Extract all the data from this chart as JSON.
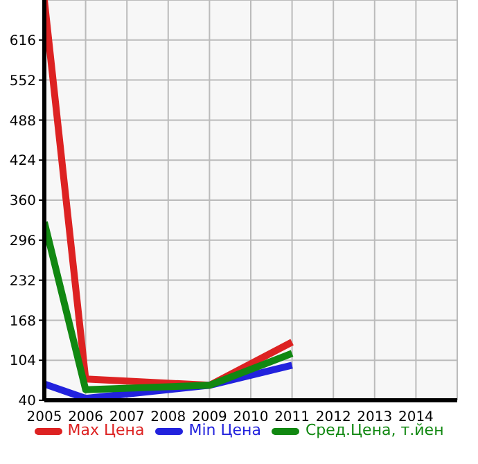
{
  "chart_data": {
    "type": "line",
    "x": [
      2005,
      2006,
      2009,
      2011
    ],
    "series": [
      {
        "name": "Max Цена",
        "color": "#dd2222",
        "values": [
          680,
          74,
          64,
          133
        ]
      },
      {
        "name": "Min Цена",
        "color": "#2222dd",
        "values": [
          66,
          43,
          64,
          96
        ]
      },
      {
        "name": "Сред.Цена, т.йен",
        "color": "#118811",
        "values": [
          325,
          57,
          64,
          115
        ]
      }
    ],
    "xlim": [
      2005,
      2015
    ],
    "xticks": [
      2005,
      2006,
      2007,
      2008,
      2009,
      2010,
      2011,
      2012,
      2013,
      2014
    ],
    "ylim": [
      40,
      680
    ],
    "yticks": [
      40,
      104,
      168,
      232,
      296,
      360,
      424,
      488,
      552,
      616
    ],
    "grid": true,
    "legend": "bottom",
    "marker": "none",
    "line_style": "solid"
  }
}
